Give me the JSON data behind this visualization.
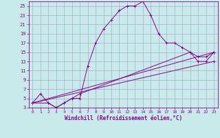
{
  "xlabel": "Windchill (Refroidissement éolien,°C)",
  "bg_color": "#c8eaea",
  "grid_color": "#aaaacc",
  "line_color": "#880088",
  "xlim": [
    -0.5,
    23.5
  ],
  "ylim": [
    3,
    26
  ],
  "xticks": [
    0,
    1,
    2,
    3,
    4,
    5,
    6,
    7,
    8,
    9,
    10,
    11,
    12,
    13,
    14,
    15,
    16,
    17,
    18,
    19,
    20,
    21,
    22,
    23
  ],
  "yticks": [
    3,
    5,
    7,
    9,
    11,
    13,
    15,
    17,
    19,
    21,
    23,
    25
  ],
  "line1_x": [
    0,
    1,
    2,
    3,
    4,
    5,
    6,
    7,
    8,
    9,
    10,
    11,
    12,
    13,
    14,
    15,
    16,
    17,
    18,
    19,
    20,
    21,
    22,
    23
  ],
  "line1_y": [
    4,
    6,
    4,
    3,
    4,
    5,
    5,
    12,
    17,
    20,
    22,
    24,
    25,
    25,
    26,
    23,
    19,
    17,
    17,
    16,
    15,
    14,
    14,
    15
  ],
  "line2_x": [
    0,
    2,
    3,
    4,
    5,
    6,
    20,
    21,
    22,
    23
  ],
  "line2_y": [
    4,
    4,
    3,
    4,
    5,
    6,
    15,
    13,
    13,
    15
  ],
  "line3_x": [
    0,
    23
  ],
  "line3_y": [
    4,
    15
  ],
  "line4_x": [
    0,
    23
  ],
  "line4_y": [
    4,
    13
  ]
}
